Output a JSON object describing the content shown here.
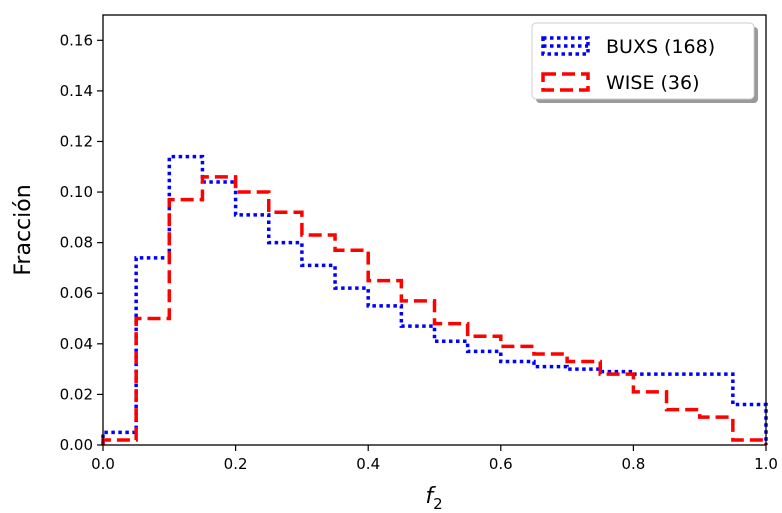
{
  "chart_data": {
    "type": "histogram",
    "xlabel": "f",
    "xlabel_sub": "2",
    "ylabel": "Fracción",
    "xlim": [
      0,
      1
    ],
    "ylim": [
      0,
      0.17
    ],
    "x_ticks": [
      "0.0",
      "0.2",
      "0.4",
      "0.6",
      "0.8",
      "1.0"
    ],
    "y_ticks": [
      "0.00",
      "0.02",
      "0.04",
      "0.06",
      "0.08",
      "0.10",
      "0.12",
      "0.14",
      "0.16"
    ],
    "bin_edges": [
      0.0,
      0.05,
      0.1,
      0.15,
      0.2,
      0.25,
      0.3,
      0.35,
      0.4,
      0.45,
      0.5,
      0.55,
      0.6,
      0.65,
      0.7,
      0.75,
      0.8,
      0.85,
      0.9,
      0.95,
      1.0
    ],
    "legend_position": "upper right",
    "grid": false,
    "series": [
      {
        "name": "BUXS (168)",
        "color": "#0000ff",
        "linestyle": "dotted",
        "values": [
          0.005,
          0.074,
          0.114,
          0.104,
          0.091,
          0.08,
          0.071,
          0.062,
          0.055,
          0.047,
          0.041,
          0.037,
          0.033,
          0.031,
          0.03,
          0.029,
          0.028,
          0.028,
          0.028,
          0.016
        ]
      },
      {
        "name": "WISE (36)",
        "color": "#ff0000",
        "linestyle": "dashed",
        "values": [
          0.002,
          0.05,
          0.097,
          0.106,
          0.1,
          0.092,
          0.083,
          0.077,
          0.065,
          0.057,
          0.048,
          0.043,
          0.039,
          0.036,
          0.033,
          0.028,
          0.021,
          0.014,
          0.011,
          0.002
        ]
      }
    ]
  }
}
